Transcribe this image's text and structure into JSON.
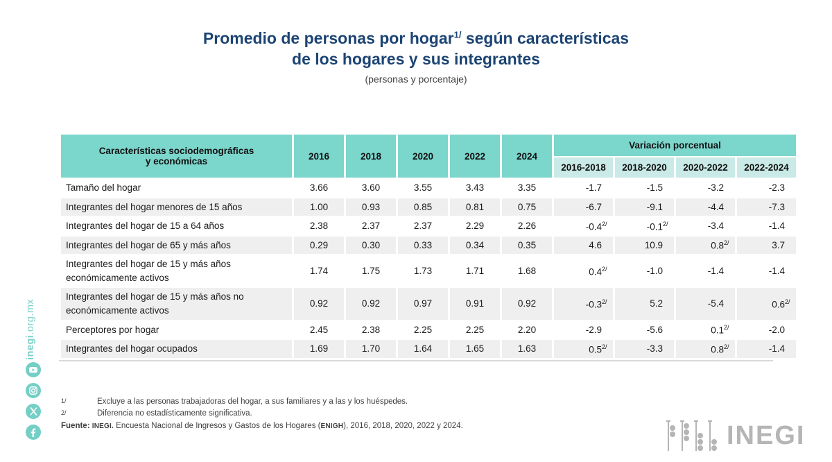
{
  "colors": {
    "title_blue": "#1c4473",
    "header_teal": "#7bd6cc",
    "subheader_teal": "#c9eae6",
    "row_alt_gray": "#efefef",
    "sidebar_teal": "#7cd1c8",
    "logo_gray": "#b5b5b5"
  },
  "title": {
    "line1_pre": "Promedio de personas por hogar",
    "sup": "1/",
    "line1_post": " según características",
    "line2": "de los hogares y sus integrantes",
    "subtitle": "(personas y porcentaje)"
  },
  "table": {
    "label_header": "Características sociodemográficas\ny económicas",
    "year_headers": [
      "2016",
      "2018",
      "2020",
      "2022",
      "2024"
    ],
    "span_header": "Variación porcentual",
    "range_headers": [
      "2016-2018",
      "2018-2020",
      "2020-2022",
      "2022-2024"
    ],
    "rows": [
      {
        "label": "Tamaño del hogar",
        "values": [
          "3.66",
          "3.60",
          "3.55",
          "3.43",
          "3.35",
          "-1.7",
          "-1.5",
          "-3.2",
          "-2.3"
        ]
      },
      {
        "label": "Integrantes del hogar menores de 15 años",
        "values": [
          "1.00",
          "0.93",
          "0.85",
          "0.81",
          "0.75",
          "-6.7",
          "-9.1",
          "-4.4",
          "-7.3"
        ]
      },
      {
        "label": "Integrantes del hogar de 15 a 64 años",
        "values": [
          "2.38",
          "2.37",
          "2.37",
          "2.29",
          "2.26",
          "-0.4^2/",
          "-0.1^2/",
          "-3.4",
          "-1.4"
        ]
      },
      {
        "label": "Integrantes del hogar de 65 y más años",
        "values": [
          "0.29",
          "0.30",
          "0.33",
          "0.34",
          "0.35",
          "4.6",
          "10.9",
          "0.8^2/",
          "3.7"
        ]
      },
      {
        "label": "Integrantes del hogar de 15 y más años económicamente activos",
        "values": [
          "1.74",
          "1.75",
          "1.73",
          "1.71",
          "1.68",
          "0.4^2/",
          "-1.0",
          "-1.4",
          "-1.4"
        ]
      },
      {
        "label": "Integrantes del hogar de 15 y más años no económicamente activos",
        "values": [
          "0.92",
          "0.92",
          "0.97",
          "0.91",
          "0.92",
          "-0.3^2/",
          "5.2",
          "-5.4",
          "0.6^2/"
        ]
      },
      {
        "label": "Perceptores por hogar",
        "values": [
          "2.45",
          "2.38",
          "2.25",
          "2.25",
          "2.20",
          "-2.9",
          "-5.6",
          "0.1^2/",
          "-2.0"
        ]
      },
      {
        "label": "Integrantes del hogar ocupados",
        "values": [
          "1.69",
          "1.70",
          "1.64",
          "1.65",
          "1.63",
          "0.5^2/",
          "-3.3",
          "0.8^2/",
          "-1.4"
        ]
      }
    ]
  },
  "chart_data": {
    "type": "table",
    "title": "Promedio de personas por hogar según características de los hogares y sus integrantes (personas y porcentaje)",
    "columns": [
      "Características sociodemográficas y económicas",
      "2016",
      "2018",
      "2020",
      "2022",
      "2024",
      "Variación porcentual 2016-2018",
      "Variación porcentual 2018-2020",
      "Variación porcentual 2020-2022",
      "Variación porcentual 2022-2024"
    ],
    "rows": [
      [
        "Tamaño del hogar",
        3.66,
        3.6,
        3.55,
        3.43,
        3.35,
        -1.7,
        -1.5,
        -3.2,
        -2.3
      ],
      [
        "Integrantes del hogar menores de 15 años",
        1.0,
        0.93,
        0.85,
        0.81,
        0.75,
        -6.7,
        -9.1,
        -4.4,
        -7.3
      ],
      [
        "Integrantes del hogar de 15 a 64 años",
        2.38,
        2.37,
        2.37,
        2.29,
        2.26,
        -0.4,
        -0.1,
        -3.4,
        -1.4
      ],
      [
        "Integrantes del hogar de 65 y más años",
        0.29,
        0.3,
        0.33,
        0.34,
        0.35,
        4.6,
        10.9,
        0.8,
        3.7
      ],
      [
        "Integrantes del hogar de 15 y más años económicamente activos",
        1.74,
        1.75,
        1.73,
        1.71,
        1.68,
        0.4,
        -1.0,
        -1.4,
        -1.4
      ],
      [
        "Integrantes del hogar de 15 y más años no económicamente activos",
        0.92,
        0.92,
        0.97,
        0.91,
        0.92,
        -0.3,
        5.2,
        -5.4,
        0.6
      ],
      [
        "Perceptores por hogar",
        2.45,
        2.38,
        2.25,
        2.25,
        2.2,
        -2.9,
        -5.6,
        0.1,
        -2.0
      ],
      [
        "Integrantes del hogar ocupados",
        1.69,
        1.7,
        1.64,
        1.65,
        1.63,
        0.5,
        -3.3,
        0.8,
        -1.4
      ]
    ],
    "footnote_flag": "Values marked 2/ = Diferencia no estadísticamente significativa: (15 a 64: 2016-2018, 2018-2020), (65 y más: 2020-2022), (econ. activos: 2016-2018), (no econ. activos: 2016-2018, 2022-2024), (Perceptores: 2020-2022), (ocupados: 2016-2018, 2020-2022)"
  },
  "footnotes": {
    "note1_marker": "1/",
    "note1_text": "Excluye a las personas trabajadoras del hogar, a sus familiares y a las y los huéspedes.",
    "note2_marker": "2/",
    "note2_text": "Diferencia no estadísticamente significativa.",
    "fuente_label": "Fuente:",
    "fuente_inegi": "INEGI.",
    "fuente_text_a": " Encuesta Nacional de Ingresos y Gastos de los Hogares (",
    "fuente_enigh": "ENIGH",
    "fuente_text_b": "), 2016, 2018, 2020, 2022 y 2024."
  },
  "sidebar": {
    "url_bold": "inegi",
    "url_rest": ".org.mx",
    "icons": [
      "youtube-icon",
      "instagram-icon",
      "x-icon",
      "facebook-icon"
    ]
  },
  "logo": {
    "text": "INEGI"
  }
}
